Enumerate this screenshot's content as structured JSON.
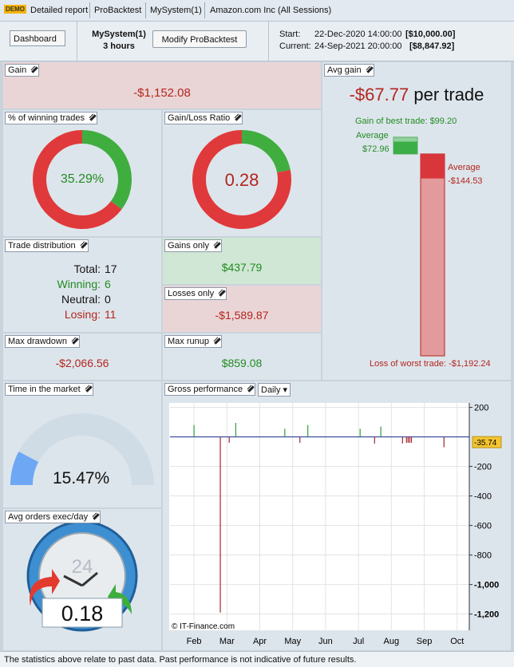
{
  "window": {
    "badge": "DEMO",
    "tabs": [
      "Detailed report",
      "ProBacktest",
      "MySystem(1)",
      "Amazon.com Inc (All Sessions)"
    ]
  },
  "toolbar": {
    "dashboard": "Dashboard",
    "system": "MySystem(1)",
    "duration": "3 hours",
    "button": "Modify ProBacktest",
    "start_label": "Start:",
    "start_date": "22-Dec-2020 14:00:00",
    "start_capital": "[$10,000.00]",
    "current_label": "Current:",
    "current_date": "24-Sep-2021 20:00:00",
    "current_capital": "[$8,847.92]"
  },
  "panels": {
    "gain": {
      "title": "Gain",
      "value": "-$1,152.08"
    },
    "winning_trades": {
      "title": "% of winning trades",
      "value": {
        "value": 35.29,
        "label": "35.29%"
      },
      "win_color": "#3fae3f",
      "loss_color": "#e0393b"
    },
    "gain_loss_ratio": {
      "title": "Gain/Loss Ratio",
      "value": 0.28,
      "win_color": "#3fae3f",
      "loss_color": "#e0393b"
    },
    "trade_distribution": {
      "title": "Trade distribution",
      "rows": [
        {
          "label": "Total:",
          "value": 17
        },
        {
          "label": "Winning:",
          "value": 6
        },
        {
          "label": "Neutral:",
          "value": 0
        },
        {
          "label": "Losing:",
          "value": 11
        }
      ]
    },
    "gains_only": {
      "title": "Gains only",
      "value": "$437.79"
    },
    "losses_only": {
      "title": "Losses only",
      "value": "-$1,589.87"
    },
    "max_drawdown": {
      "title": "Max drawdown",
      "value": "-$2,066.56"
    },
    "max_runup": {
      "title": "Max runup",
      "value": "$859.08"
    },
    "time_in_market": {
      "title": "Time in the market",
      "value": {
        "value": 15.47,
        "label": "15.47%"
      },
      "color": "#6ea8f5"
    },
    "avg_orders": {
      "title": "Avg orders exec/day",
      "dial": "24",
      "value": 0.18
    },
    "avg_gain": {
      "title": "Avg gain",
      "headline": {
        "value": -67.77,
        "label": "-$67.77"
      },
      "unit": "per trade",
      "best_label": "Gain of best trade:",
      "best": {
        "value": 99.2,
        "label": "$99.20"
      },
      "avg_gain_label": "Average",
      "avg_gain": {
        "value": 72.96,
        "label": "$72.96"
      },
      "avg_loss_label": "Average",
      "avg_loss": {
        "value": -144.53,
        "label": "-$144.53"
      },
      "worst_label": "Loss of worst trade:",
      "worst": {
        "value": -1192.24,
        "label": "-$1,192.24"
      }
    },
    "gross_performance": {
      "title": "Gross performance",
      "period": "Daily",
      "chart_data": {
        "type": "bar",
        "credit": "© IT-Finance.com",
        "x": [
          2.0,
          2.8,
          3.07,
          3.27,
          4.76,
          5.22,
          5.46,
          7.05,
          7.49,
          7.68,
          8.34,
          8.46,
          8.51,
          8.56,
          8.61,
          9.6
        ],
        "values": [
          80,
          -1190,
          -40,
          95,
          55,
          -40,
          80,
          55,
          -45,
          70,
          -45,
          -40,
          -40,
          -40,
          -40,
          -70
        ],
        "up_color": "#2e9e3e",
        "down_color": "#a0262e",
        "zero_color": "#1a2a8a",
        "last_value": -35.74,
        "xlim": [
          1.27,
          10.37
        ],
        "xticks": [
          {
            "value": 2,
            "label": "Feb"
          },
          {
            "value": 3,
            "label": "Mar"
          },
          {
            "value": 4,
            "label": "Apr"
          },
          {
            "value": 5,
            "label": "May"
          },
          {
            "value": 6,
            "label": "Jun"
          },
          {
            "value": 7,
            "label": "Jul"
          },
          {
            "value": 8,
            "label": "Aug"
          },
          {
            "value": 9,
            "label": "Sep"
          },
          {
            "value": 10,
            "label": "Oct"
          }
        ],
        "ylim": [
          -1310,
          230
        ],
        "yticks": [
          200,
          -200,
          -400,
          -600,
          -800,
          {
            "value": -1000,
            "label": "-1,000"
          },
          {
            "value": -1200,
            "label": "-1,200"
          }
        ],
        "grid": true
      }
    }
  },
  "footer": "The statistics above relate to past data. Past performance is not indicative of future results."
}
